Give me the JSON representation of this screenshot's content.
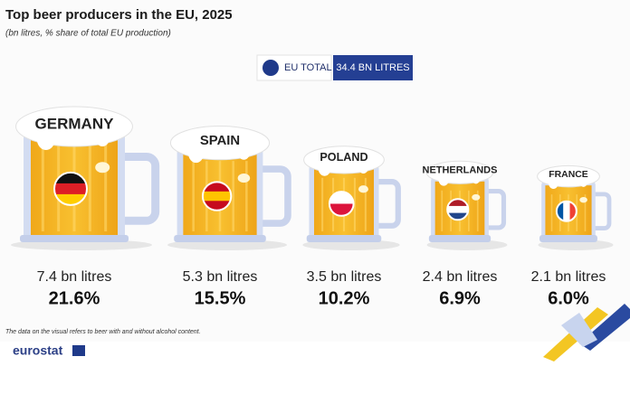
{
  "chart_data": {
    "type": "pictogram",
    "title": "Top beer producers in the EU, 2025",
    "subtitle": "(bn litres, % share of total EU production)",
    "total": {
      "label": "EU TOTAL",
      "value": 34.4,
      "value_label": "34.4 BN LITRES"
    },
    "categories": [
      "GERMANY",
      "SPAIN",
      "POLAND",
      "NETHERLANDS",
      "FRANCE"
    ],
    "values": [
      7.4,
      5.3,
      3.5,
      2.4,
      2.1
    ],
    "value_labels": [
      "7.4 bn litres",
      "5.3 bn litres",
      "3.5 bn litres",
      "2.4 bn litres",
      "2.1 bn litres"
    ],
    "shares": [
      21.6,
      15.5,
      10.2,
      6.9,
      6.0
    ],
    "share_labels": [
      "21.6%",
      "15.5%",
      "10.2%",
      "6.9%",
      "6.0%"
    ],
    "color": "#f5b41c",
    "note": "The data on the visual refers to beer with and without alcohol content.",
    "source": "eurostat"
  }
}
